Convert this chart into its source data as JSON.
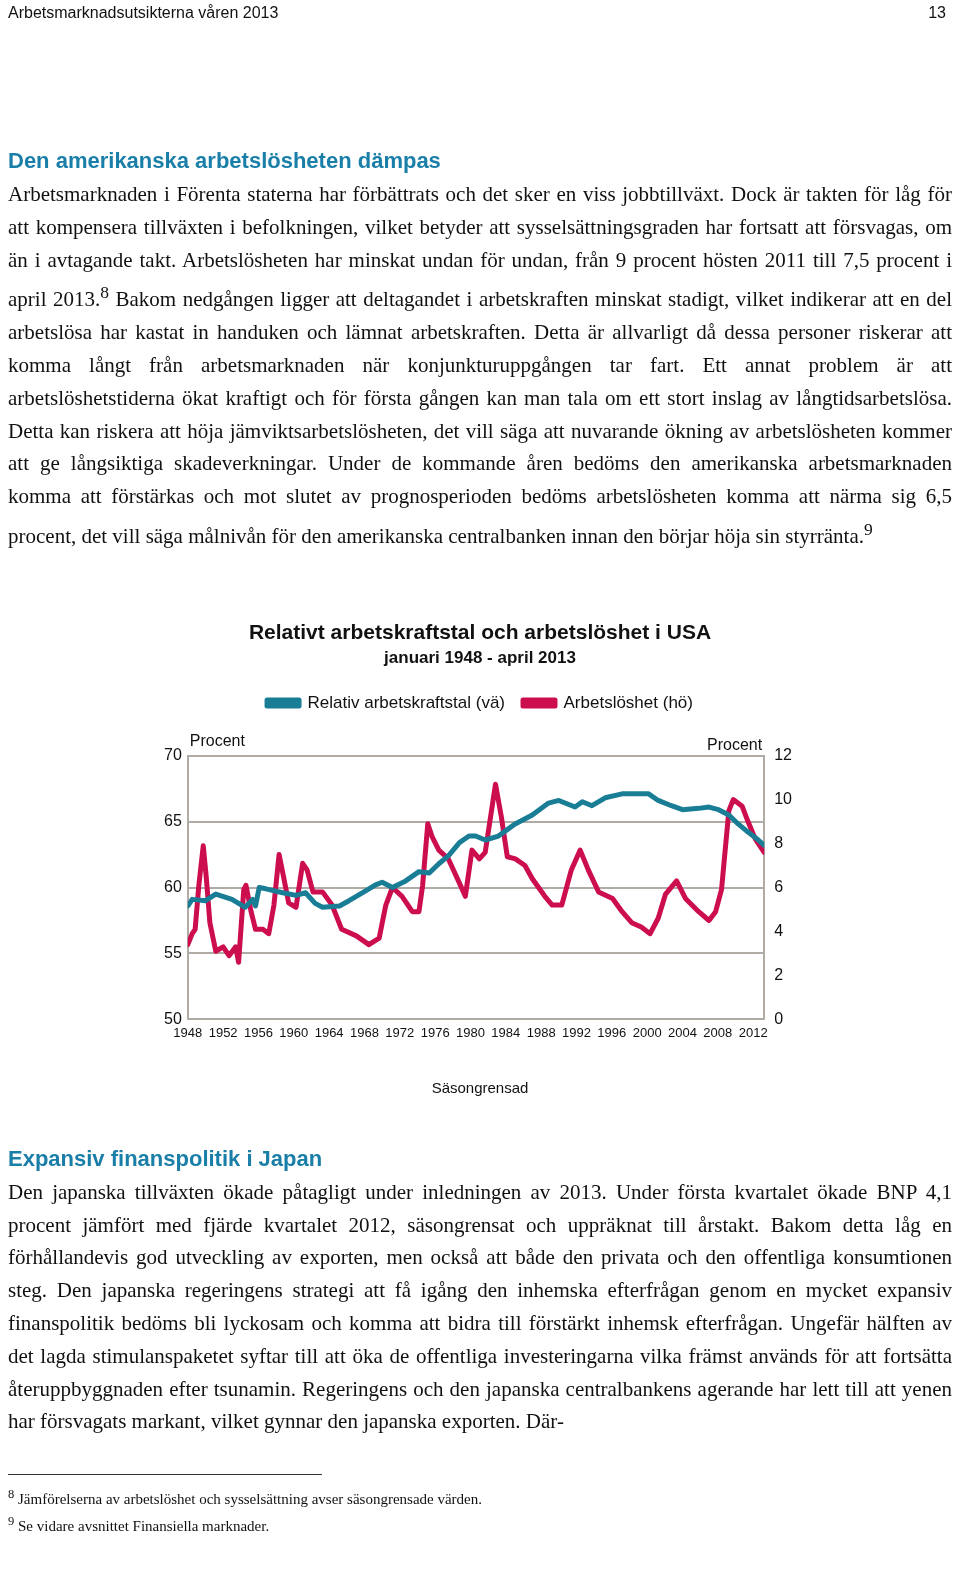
{
  "chart_data": {
    "type": "line",
    "title": "Relativt arbetskraftstal och arbetslöshet i USA",
    "subtitle": "januari 1948 - april 2013",
    "ylabel": "Procent",
    "y2label": "Procent",
    "annotations": [
      "Arbetsmarknadsutsikterna våren 2013",
      "13",
      "Den amerikanska arbetslösheten dämpas",
      "Arbetsmarknaden i Förenta staterna har förbättrats och det sker en viss jobbtillväxt. Dock är takten för låg för att kompensera tillväxten i befolkningen, vilket betyder att sysselsättningsgraden har fortsatt att försvagas, om än i avtagande takt. Arbetslösheten har minskat undan för undan, från 9 procent hösten 2011 till 7,5 procent i april 2013.$^{8}$ Bakom nedgången ligger att deltagandet i arbetskraften minskat stadigt, vilket indikerar att en del arbetslösa har kastat in handuken och lämnat arbetskraften. Detta är allvarligt då dessa personer riskerar att komma långt från arbetsmarknaden när konjunkturuppgången tar fart. Ett annat problem är att arbetslöshetstiderna ökat kraftigt och för första gången kan man tala om ett stort inslag av långtidsarbetslösa. Detta kan riskera att höja jämviktsarbetslösheten, det vill säga att nuvarande ökning av arbetslösheten kommer att ge långsiktiga skadeverkningar. Under de kommande åren bedöms den amerikanska arbetsmarknaden komma att förstärkas och mot slutet av prognosperioden bedöms arbetslösheten komma att närma sig 6,5 procent, det vill säga målnivån för den amerikanska centralbanken innan den börjar höja sin styrränta.$^{9}$",
      "Säsongrensad",
      "Expansiv finanspolitik i Japan",
      "Den japanska tillväxten ökade påtagligt under inledningen av 2013. Under första kvartalet ökade BNP 4,1 procent jämfört med fjärde kvartalet 2012, säsongrensat och uppräknat till årstakt. Bakom detta låg en förhållandevis god utveckling av exporten, men också att både den privata och den offentliga konsumtionen steg. Den japanska regeringens strategi att få igång den inhemska efterfrågan genom en mycket expansiv finanspolitik bedöms bli lyckosam och komma att bidra till förstärkt inhemsk efterfrågan. Ungefär hälften av det lagda stimulanspaketet syftar till att öka de offentliga investeringarna vilka främst används för att fortsätta återuppbyggnaden efter tsunamin. Regeringens och den japanska centralbankens agerande har lett till att yenen har försvagats markant, vilket gynnar den japanska exporten. Där-",
      "$^{8}$ Jämförelserna av arbetslöshet och sysselsättning avser säsongrensade värden.",
      "$^{9}$ Se vidare avsnittet Finansiella marknader."
    ],
    "xlim": [
      "1948-01",
      "2013-04"
    ],
    "xticks": [
      "1948",
      "1952",
      "1956",
      "1960",
      "1964",
      "1968",
      "1972",
      "1976",
      "1980",
      "1984",
      "1988",
      "1992",
      "1996",
      "2000",
      "2004",
      "2008",
      "2012"
    ],
    "ylim": [
      50,
      70
    ],
    "yticks": [
      50,
      55,
      60,
      65,
      70
    ],
    "y2lim": [
      0,
      12
    ],
    "y2ticks": [
      0,
      2,
      4,
      6,
      8,
      10,
      12
    ],
    "grid": "y",
    "legend": "top",
    "marker": "none",
    "series": [
      {
        "name": "Relativ arbetskraftstal (vä)",
        "color": "#1a7d96",
        "x": [
          "1948-01",
          "1948-07",
          "1950-01",
          "1951-03",
          "1953-01",
          "1953-10",
          "1954-07",
          "1955-05",
          "1955-09",
          "1956-02",
          "1956-11",
          "1958-10",
          "1960-04",
          "1961-05",
          "1962-06",
          "1963-04",
          "1965-03",
          "1966-04",
          "1967-10",
          "1969-04",
          "1970-01",
          "1971-03",
          "1972-09",
          "1974-03",
          "1975-05",
          "1976-06",
          "1977-07",
          "1978-10",
          "1979-11",
          "1980-08",
          "1981-09",
          "1983-03",
          "1985-01",
          "1987-01",
          "1988-11",
          "1990-01",
          "1991-11",
          "1992-09",
          "1993-10",
          "1995-04",
          "1997-03",
          "1998-04",
          "2000-03",
          "2001-04",
          "2002-10",
          "2004-01",
          "2005-11",
          "2007-01",
          "2008-02",
          "2009-04",
          "2010-05",
          "2011-06",
          "2012-08",
          "2013-04"
        ],
        "values": [
          58.6,
          59.1,
          59.0,
          59.5,
          59.1,
          58.8,
          58.5,
          59.1,
          58.6,
          60.0,
          59.9,
          59.6,
          59.4,
          59.6,
          58.8,
          58.5,
          58.6,
          59.0,
          59.6,
          60.2,
          60.4,
          60.0,
          60.5,
          61.2,
          61.1,
          61.8,
          62.4,
          63.4,
          63.9,
          63.9,
          63.6,
          63.9,
          64.8,
          65.5,
          66.4,
          66.6,
          66.1,
          66.5,
          66.2,
          66.8,
          67.1,
          67.1,
          67.1,
          66.6,
          66.2,
          65.9,
          66.0,
          66.1,
          65.9,
          65.5,
          64.8,
          64.2,
          63.6,
          63.2
        ]
      },
      {
        "name": "Arbetslöshet (hö)",
        "color": "#cc0e4f",
        "axis": "y2",
        "x": [
          "1948-01",
          "1948-07",
          "1948-11",
          "1949-04",
          "1949-10",
          "1950-02",
          "1950-07",
          "1951-03",
          "1952-01",
          "1952-09",
          "1953-06",
          "1953-10",
          "1954-05",
          "1954-08",
          "1955-03",
          "1955-09",
          "1956-07",
          "1957-03",
          "1957-10",
          "1958-05",
          "1958-11",
          "1959-06",
          "1960-04",
          "1961-01",
          "1961-07",
          "1962-03",
          "1963-04",
          "1964-05",
          "1965-06",
          "1967-02",
          "1968-07",
          "1969-09",
          "1970-06",
          "1971-03",
          "1972-04",
          "1973-06",
          "1974-03",
          "1974-08",
          "1975-03",
          "1975-09",
          "1976-06",
          "1977-07",
          "1978-10",
          "1979-06",
          "1980-03",
          "1981-01",
          "1981-09",
          "1982-11",
          "1983-07",
          "1984-03",
          "1985-02",
          "1986-03",
          "1987-01",
          "1988-06",
          "1989-04",
          "1990-05",
          "1991-06",
          "1992-06",
          "1993-05",
          "1994-07",
          "1996-02",
          "1997-03",
          "1998-04",
          "1999-05",
          "2000-05",
          "2001-04",
          "2002-02",
          "2003-05",
          "2004-05",
          "2005-11",
          "2007-01",
          "2007-10",
          "2008-06",
          "2009-04",
          "2009-10",
          "2010-10",
          "2011-06",
          "2012-04",
          "2013-04"
        ],
        "values": [
          3.4,
          3.9,
          4.1,
          6.1,
          7.9,
          6.5,
          4.4,
          3.1,
          3.3,
          2.9,
          3.3,
          2.6,
          5.9,
          6.1,
          4.9,
          4.1,
          4.1,
          3.9,
          5.2,
          7.5,
          6.5,
          5.3,
          5.1,
          7.1,
          6.8,
          5.8,
          5.8,
          5.2,
          4.1,
          3.8,
          3.4,
          3.7,
          5.2,
          6.0,
          5.6,
          4.9,
          4.9,
          6.1,
          8.9,
          8.3,
          7.7,
          7.3,
          6.2,
          5.6,
          7.7,
          7.3,
          7.6,
          10.7,
          9.2,
          7.4,
          7.3,
          7.0,
          6.4,
          5.6,
          5.2,
          5.2,
          6.8,
          7.7,
          6.8,
          5.8,
          5.5,
          4.9,
          4.4,
          4.2,
          3.9,
          4.6,
          5.7,
          6.3,
          5.5,
          4.9,
          4.5,
          4.9,
          5.9,
          9.5,
          10.0,
          9.7,
          9.0,
          8.2,
          7.6
        ]
      }
    ]
  }
}
